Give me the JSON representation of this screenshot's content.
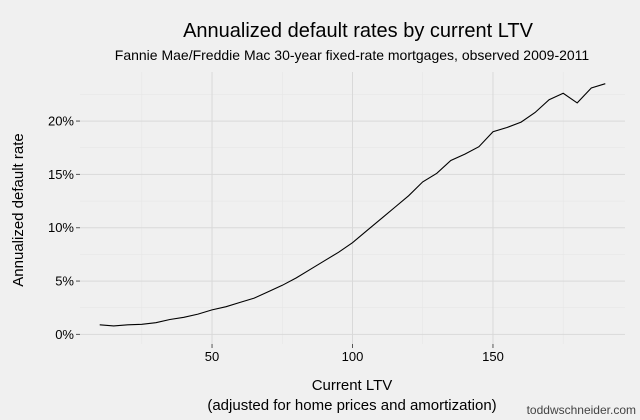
{
  "chart_data": {
    "type": "line",
    "title": "Annualized default rates by current LTV",
    "subtitle": "Fannie Mae/Freddie Mac 30-year fixed-rate mortgages, observed 2009-2011",
    "xlabel": "Current LTV",
    "xlabel_line2": "(adjusted for home prices and amortization)",
    "ylabel": "Annualized default rate",
    "xlim": [
      3,
      197
    ],
    "ylim": [
      -0.9,
      24.6
    ],
    "x_ticks": [
      {
        "value": 50,
        "label": "50"
      },
      {
        "value": 100,
        "label": "100"
      },
      {
        "value": 150,
        "label": "150"
      }
    ],
    "y_ticks": [
      {
        "value": 0,
        "label": "0%"
      },
      {
        "value": 5,
        "label": "5%"
      },
      {
        "value": 10,
        "label": "10%"
      },
      {
        "value": 15,
        "label": "15%"
      },
      {
        "value": 20,
        "label": "20%"
      }
    ],
    "grid": true,
    "line_color": "#000000",
    "series": [
      {
        "x": [
          10,
          15,
          20,
          25,
          30,
          35,
          40,
          45,
          50,
          55,
          60,
          65,
          70,
          75,
          80,
          85,
          90,
          95,
          100,
          105,
          110,
          115,
          120,
          125,
          130,
          135,
          140,
          145,
          150,
          155,
          160,
          165,
          170,
          175,
          180,
          185,
          190
        ],
        "y": [
          0.9,
          0.8,
          0.9,
          0.95,
          1.1,
          1.4,
          1.6,
          1.9,
          2.3,
          2.6,
          3.0,
          3.4,
          4.0,
          4.6,
          5.3,
          6.1,
          6.9,
          7.7,
          8.6,
          9.7,
          10.8,
          11.9,
          13.0,
          14.3,
          15.1,
          16.3,
          16.9,
          17.6,
          19.0,
          19.4,
          19.9,
          20.8,
          22.0,
          22.6,
          21.7,
          23.1,
          23.5
        ]
      }
    ]
  },
  "credit": "toddwschneider.com",
  "colors": {
    "background": "#f0f0f0",
    "panel": "#f0f0f0",
    "grid_major": "#d9d9d9",
    "grid_minor": "#e6e6e6"
  }
}
